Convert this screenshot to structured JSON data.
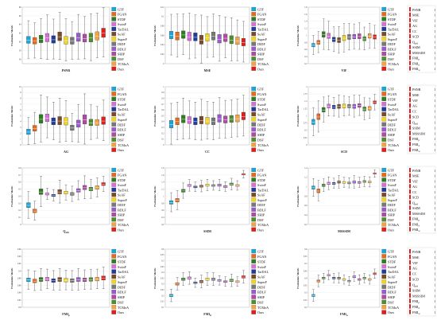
{
  "methods": [
    "GTF",
    "FGAN",
    "STDF",
    "SwinF",
    "TarDAL",
    "SeAF",
    "SuperF",
    "DIDF",
    "BDLF",
    "SHIP",
    "DSF",
    "TCMoA",
    "Ours"
  ],
  "colors": [
    "#19a7d8",
    "#e66a1b",
    "#2e7d1e",
    "#d66fd8",
    "#1f3c9a",
    "#7a4a26",
    "#f2d51c",
    "#777777",
    "#9b59d0",
    "#b04aa4",
    "#4f8f2d",
    "#f4a340",
    "#e21d1d"
  ],
  "legend_text_colors": [
    "#111",
    "#111",
    "#111",
    "#d66fd8",
    "#111",
    "#e21d1d",
    "#111",
    "#111",
    "#111",
    "#9b59d0",
    "#19a7d8",
    "#111",
    "#e21d1d"
  ],
  "chart_data": [
    {
      "type": "box",
      "xlabel": "PSNR",
      "ylabel": "Evaluation Metric",
      "ylim": [
        55,
        68
      ],
      "yticks": [
        56,
        58,
        60,
        62,
        64,
        66,
        68
      ],
      "median": [
        60.4,
        60.2,
        60.6,
        60.9,
        60.5,
        61.2,
        60.3,
        60.2,
        61.0,
        60.8,
        60.9,
        61.3,
        62.0
      ],
      "spread": [
        1.6,
        1.5,
        1.7,
        1.9,
        1.7,
        2.0,
        1.8,
        1.6,
        1.9,
        1.8,
        2.0,
        1.9,
        2.1
      ]
    },
    {
      "type": "box",
      "xlabel": "MSE",
      "ylabel": "Evaluation Metric",
      "ylim": [
        0,
        0.12
      ],
      "yticks": [
        0,
        0.02,
        0.04,
        0.06,
        0.08,
        0.1,
        0.12
      ],
      "median": [
        0.06,
        0.058,
        0.061,
        0.057,
        0.056,
        0.05,
        0.055,
        0.058,
        0.052,
        0.054,
        0.05,
        0.048,
        0.045
      ],
      "spread": [
        0.016,
        0.017,
        0.016,
        0.018,
        0.017,
        0.019,
        0.016,
        0.017,
        0.018,
        0.016,
        0.017,
        0.016,
        0.016
      ]
    },
    {
      "type": "box",
      "xlabel": "VIF",
      "ylabel": "Evaluation Metric",
      "ylim": [
        0.2,
        1.8
      ],
      "yticks": [
        0.2,
        0.4,
        0.6,
        0.8,
        1.0,
        1.2,
        1.4,
        1.6,
        1.8
      ],
      "median": [
        0.72,
        0.8,
        1.02,
        0.98,
        0.88,
        0.86,
        0.92,
        0.95,
        0.96,
        0.97,
        0.9,
        0.98,
        0.95
      ],
      "spread": [
        0.1,
        0.11,
        0.16,
        0.15,
        0.13,
        0.14,
        0.15,
        0.14,
        0.13,
        0.14,
        0.12,
        0.13,
        0.12
      ]
    },
    {
      "type": "box",
      "xlabel": "AG",
      "ylabel": "Evaluation Metric",
      "ylim": [
        0,
        10
      ],
      "yticks": [
        0,
        1,
        2,
        3,
        4,
        5,
        6,
        7,
        8,
        9,
        10
      ],
      "median": [
        2.2,
        2.8,
        4.4,
        4.6,
        4.0,
        4.1,
        4.0,
        2.9,
        3.6,
        4.3,
        3.8,
        3.8,
        4.1
      ],
      "spread": [
        0.9,
        1.0,
        1.5,
        1.3,
        1.2,
        1.4,
        1.3,
        0.9,
        1.2,
        1.6,
        1.1,
        1.0,
        1.3
      ]
    },
    {
      "type": "box",
      "xlabel": "CC",
      "ylabel": "Evaluation Metric",
      "ylim": [
        0,
        1
      ],
      "yticks": [
        0,
        0.1,
        0.2,
        0.3,
        0.4,
        0.5,
        0.6,
        0.7,
        0.8,
        0.9,
        1.0
      ],
      "median": [
        0.35,
        0.4,
        0.44,
        0.42,
        0.4,
        0.42,
        0.41,
        0.4,
        0.45,
        0.43,
        0.44,
        0.45,
        0.49
      ],
      "spread": [
        0.13,
        0.12,
        0.13,
        0.12,
        0.12,
        0.13,
        0.12,
        0.12,
        0.13,
        0.12,
        0.12,
        0.12,
        0.13
      ]
    },
    {
      "type": "box",
      "xlabel": "SCD",
      "ylabel": "Evaluation Metric",
      "ylim": [
        0,
        2
      ],
      "yticks": [
        0,
        0.25,
        0.5,
        0.75,
        1.0,
        1.25,
        1.5,
        1.75,
        2.0
      ],
      "median": [
        0.78,
        0.96,
        1.2,
        1.33,
        1.3,
        1.32,
        1.33,
        1.33,
        1.32,
        1.35,
        1.23,
        1.25,
        1.46
      ],
      "spread": [
        0.18,
        0.2,
        0.16,
        0.13,
        0.12,
        0.14,
        0.13,
        0.12,
        0.14,
        0.13,
        0.14,
        0.13,
        0.1
      ]
    },
    {
      "type": "box",
      "xlabel": "Q_abf",
      "ylabel": "Evaluation Metric",
      "ylim": [
        0,
        0.8
      ],
      "yticks": [
        0,
        0.1,
        0.2,
        0.3,
        0.4,
        0.5,
        0.6,
        0.7,
        0.8
      ],
      "median": [
        0.27,
        0.19,
        0.46,
        0.43,
        0.41,
        0.46,
        0.45,
        0.43,
        0.48,
        0.52,
        0.5,
        0.52,
        0.57
      ],
      "spread": [
        0.07,
        0.05,
        0.08,
        0.03,
        0.03,
        0.06,
        0.04,
        0.04,
        0.05,
        0.06,
        0.05,
        0.05,
        0.04
      ]
    },
    {
      "type": "box",
      "xlabel": "SSIM",
      "ylabel": "Evaluation Metric",
      "ylim": [
        0.2,
        1.8
      ],
      "yticks": [
        0.2,
        0.4,
        0.6,
        0.8,
        1.0,
        1.2,
        1.4,
        1.6,
        1.8
      ],
      "median": [
        0.82,
        0.88,
        1.15,
        1.3,
        1.26,
        1.28,
        1.31,
        1.3,
        1.31,
        1.27,
        1.34,
        1.3,
        1.62
      ],
      "spread": [
        0.1,
        0.1,
        0.08,
        0.06,
        0.05,
        0.06,
        0.06,
        0.05,
        0.06,
        0.05,
        0.06,
        0.05,
        0.04
      ]
    },
    {
      "type": "box",
      "xlabel": "MSSSIM",
      "ylabel": "Evaluation Metric",
      "ylim": [
        0.2,
        1.4
      ],
      "yticks": [
        0.2,
        0.4,
        0.6,
        0.8,
        1.0,
        1.2,
        1.4
      ],
      "median": [
        0.98,
        0.91,
        1.03,
        1.07,
        1.07,
        1.1,
        1.09,
        1.08,
        1.1,
        1.09,
        1.11,
        1.1,
        1.28
      ],
      "spread": [
        0.07,
        0.08,
        0.05,
        0.05,
        0.04,
        0.05,
        0.04,
        0.04,
        0.05,
        0.04,
        0.04,
        0.04,
        0.03
      ]
    },
    {
      "type": "box",
      "xlabel": "FMI_p",
      "ylabel": "Evaluation Metric",
      "ylim": [
        0.8,
        0.96
      ],
      "yticks": [
        0.8,
        0.82,
        0.84,
        0.86,
        0.88,
        0.9,
        0.92,
        0.94,
        0.96
      ],
      "median": [
        0.875,
        0.872,
        0.876,
        0.877,
        0.873,
        0.876,
        0.874,
        0.873,
        0.876,
        0.875,
        0.876,
        0.877,
        0.88
      ],
      "spread": [
        0.01,
        0.01,
        0.011,
        0.01,
        0.01,
        0.011,
        0.01,
        0.01,
        0.011,
        0.01,
        0.01,
        0.01,
        0.011
      ]
    },
    {
      "type": "box",
      "xlabel": "FMI_d",
      "ylabel": "Evaluation Metric",
      "ylim": [
        0.1,
        0.6
      ],
      "yticks": [
        0.1,
        0.15,
        0.2,
        0.25,
        0.3,
        0.35,
        0.4,
        0.45,
        0.5,
        0.55,
        0.6
      ],
      "median": [
        0.2,
        0.3,
        0.34,
        0.35,
        0.31,
        0.32,
        0.34,
        0.34,
        0.33,
        0.32,
        0.33,
        0.32,
        0.36
      ],
      "spread": [
        0.02,
        0.02,
        0.02,
        0.02,
        0.015,
        0.02,
        0.02,
        0.02,
        0.015,
        0.015,
        0.02,
        0.015,
        0.02
      ]
    },
    {
      "type": "box",
      "xlabel": "FMI_w",
      "ylabel": "Evaluation Metric",
      "ylim": [
        0.2,
        0.6
      ],
      "yticks": [
        0.2,
        0.25,
        0.3,
        0.35,
        0.4,
        0.45,
        0.5,
        0.55,
        0.6
      ],
      "median": [
        0.28,
        0.38,
        0.4,
        0.42,
        0.4,
        0.4,
        0.39,
        0.38,
        0.41,
        0.39,
        0.4,
        0.39,
        0.43
      ],
      "spread": [
        0.015,
        0.015,
        0.012,
        0.012,
        0.012,
        0.013,
        0.012,
        0.011,
        0.012,
        0.012,
        0.012,
        0.012,
        0.012
      ]
    }
  ],
  "metric_legend": [
    {
      "name": "PSNR",
      "value": "1"
    },
    {
      "name": "MSE",
      "value": "1"
    },
    {
      "name": "VIF",
      "value": "1"
    },
    {
      "name": "AG",
      "value": "1"
    },
    {
      "name": "CC",
      "value": "1"
    },
    {
      "name": "SCD",
      "value": "1"
    },
    {
      "name": "Q_abf",
      "value": "1"
    },
    {
      "name": "SSIM",
      "value": "1"
    },
    {
      "name": "MSSSIM",
      "value": "1"
    },
    {
      "name": "FMI_p",
      "value": "1"
    },
    {
      "name": "FMI_d",
      "value": "1"
    },
    {
      "name": "FMI_w",
      "value": "1"
    }
  ]
}
